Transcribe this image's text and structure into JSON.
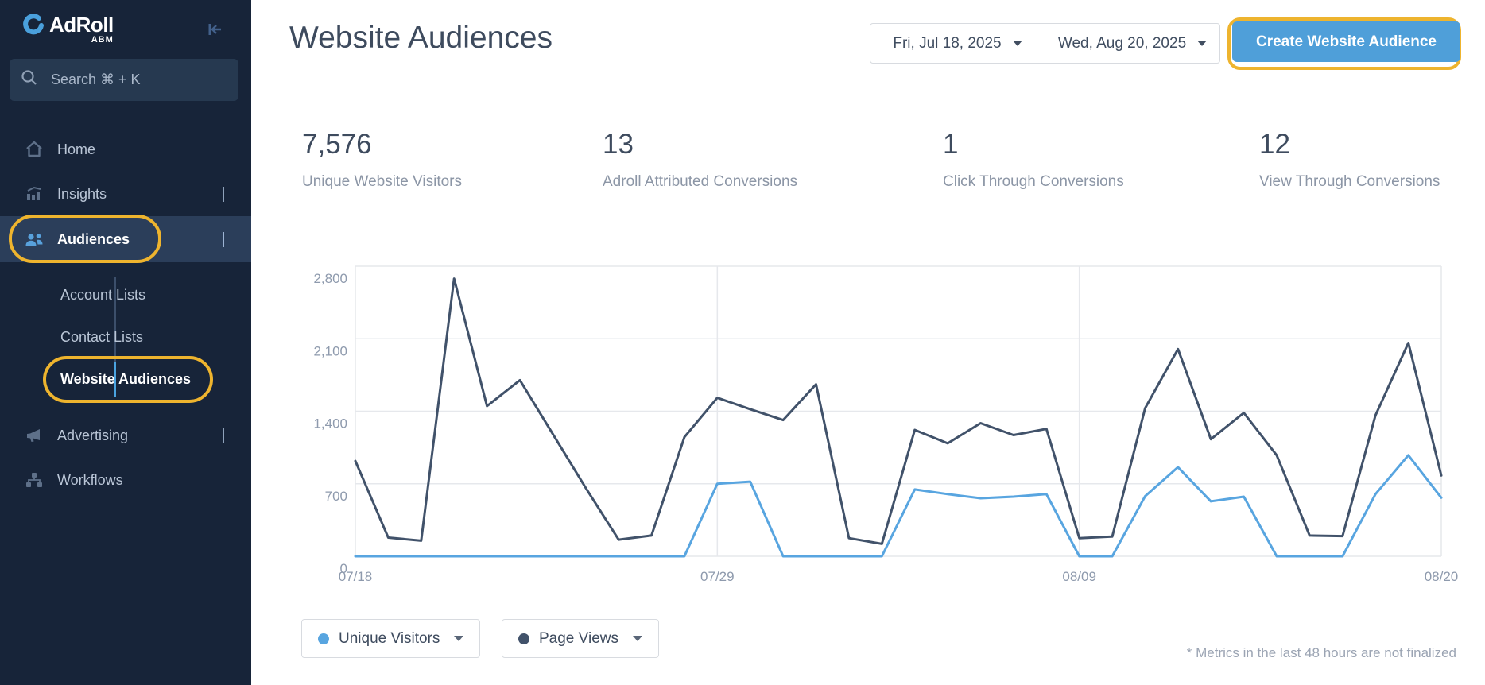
{
  "sidebar": {
    "logo": {
      "brand": "AdRoll",
      "sub": "ABM"
    },
    "search": {
      "placeholder": "Search ⌘ + K"
    },
    "items": [
      {
        "label": "Home"
      },
      {
        "label": "Insights"
      },
      {
        "label": "Audiences"
      },
      {
        "label": "Account Lists"
      },
      {
        "label": "Contact Lists"
      },
      {
        "label": "Website Audiences"
      },
      {
        "label": "Advertising"
      },
      {
        "label": "Workflows"
      }
    ]
  },
  "header": {
    "title": "Website Audiences",
    "date_start": "Fri, Jul 18, 2025",
    "date_end": "Wed, Aug 20, 2025",
    "create_button": "Create Website Audience"
  },
  "stats": [
    {
      "value": "7,576",
      "label": "Unique Website Visitors"
    },
    {
      "value": "13",
      "label": "Adroll Attributed Conversions"
    },
    {
      "value": "1",
      "label": "Click Through Conversions"
    },
    {
      "value": "12",
      "label": "View Through Conversions"
    }
  ],
  "chart_data": {
    "type": "line",
    "title": "",
    "xlabel": "",
    "ylabel": "",
    "ylim": [
      0,
      2800
    ],
    "grid": true,
    "y_ticks": [
      0,
      700,
      1400,
      2100,
      2800
    ],
    "y_tick_labels": [
      "0",
      "700",
      "1,400",
      "2,100",
      "2,800"
    ],
    "x_tick_indices": [
      0,
      11,
      22,
      33
    ],
    "x_tick_labels": [
      "07/18",
      "07/29",
      "08/09",
      "08/20"
    ],
    "dates": [
      "07/18",
      "07/19",
      "07/20",
      "07/21",
      "07/22",
      "07/23",
      "07/24",
      "07/25",
      "07/26",
      "07/27",
      "07/28",
      "07/29",
      "07/30",
      "07/31",
      "08/01",
      "08/02",
      "08/03",
      "08/04",
      "08/05",
      "08/06",
      "08/07",
      "08/08",
      "08/09",
      "08/10",
      "08/11",
      "08/12",
      "08/13",
      "08/14",
      "08/15",
      "08/16",
      "08/17",
      "08/18",
      "08/19",
      "08/20"
    ],
    "series": [
      {
        "name": "Page Views",
        "color": "#41526a",
        "values": [
          920,
          180,
          150,
          2680,
          1450,
          1700,
          1180,
          660,
          160,
          200,
          1150,
          1530,
          1420,
          1315,
          1660,
          175,
          120,
          1220,
          1090,
          1285,
          1170,
          1230,
          175,
          190,
          1430,
          2000,
          1130,
          1385,
          975,
          200,
          195,
          1360,
          2060,
          780
        ]
      },
      {
        "name": "Unique Visitors",
        "color": "#58a5e0",
        "values": [
          0,
          0,
          0,
          0,
          0,
          0,
          0,
          0,
          0,
          0,
          0,
          700,
          720,
          0,
          0,
          0,
          0,
          645,
          600,
          560,
          575,
          600,
          0,
          0,
          580,
          860,
          530,
          575,
          0,
          0,
          0,
          600,
          975,
          565
        ]
      }
    ],
    "legend_position": "bottom-left"
  },
  "legend": [
    {
      "label": "Unique Visitors",
      "color": "#58a5e0"
    },
    {
      "label": "Page Views",
      "color": "#41526a"
    }
  ],
  "footnote": "* Metrics in the last 48 hours are not finalized",
  "colors": {
    "accent_blue": "#4f9fd9",
    "gold_annotation": "#eeb42e",
    "sidebar_bg": "#172439",
    "sidebar_active_bg": "#2b3e5a",
    "rail_blue": "#4aa3e0",
    "gridline": "#e6e8ec",
    "axis_text": "#8e9aad"
  }
}
